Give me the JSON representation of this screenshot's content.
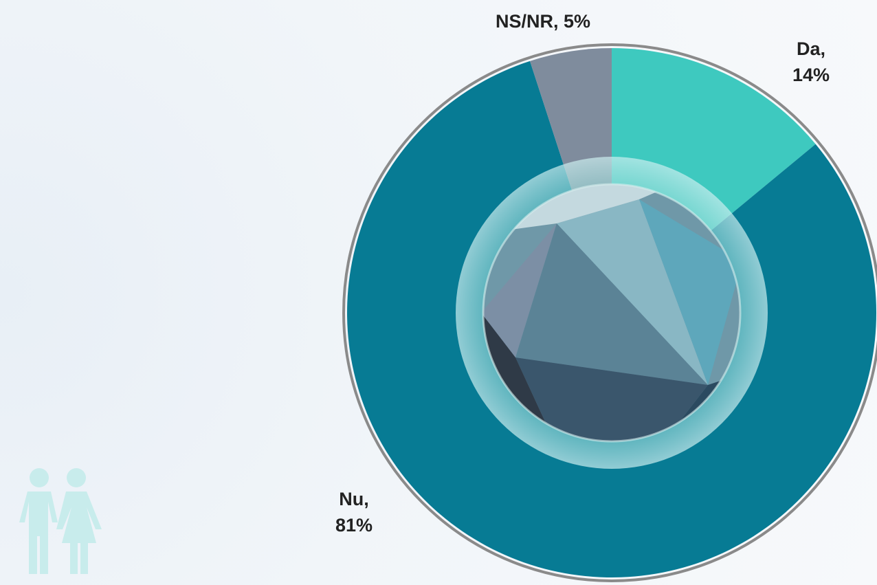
{
  "chart_data": {
    "type": "pie",
    "values": [
      14,
      81,
      5
    ],
    "value_labels": [
      "Da, 14%",
      "Nu, 81%",
      "NS/NR, 5%"
    ],
    "colors": [
      "#3ec9bf",
      "#077b94",
      "#7f8c9d"
    ]
  }
}
